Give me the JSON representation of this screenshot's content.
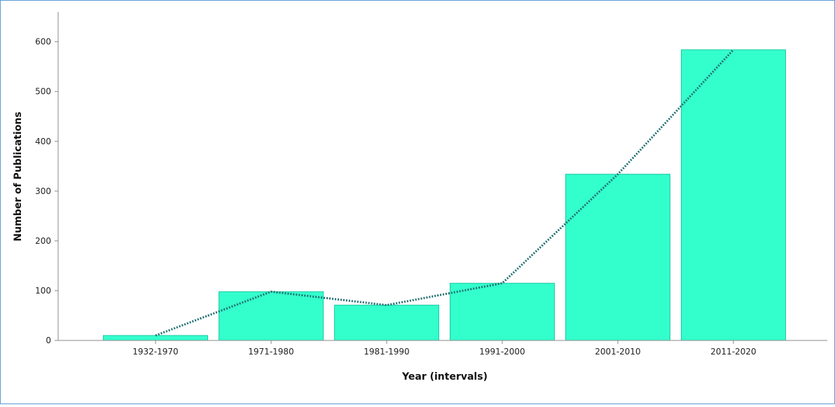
{
  "chart_data": {
    "type": "bar",
    "categories": [
      "1932-1970",
      "1971-1980",
      "1981-1990",
      "1991-2000",
      "2001-2010",
      "2011-2020"
    ],
    "values": [
      10,
      98,
      71,
      115,
      334,
      584
    ],
    "line_overlay": {
      "style": "dotted",
      "values": [
        10,
        98,
        71,
        115,
        334,
        584
      ]
    },
    "title": "",
    "xlabel": "Year (intervals)",
    "ylabel": "Number of Publications",
    "ylim": [
      0,
      660
    ],
    "yticks": [
      0,
      100,
      200,
      300,
      400,
      500,
      600
    ],
    "grid": false,
    "colors": {
      "bar_fill": "#33ffcc",
      "bar_stroke": "#20c9a3",
      "line": "#1f6f70",
      "axis": "#888888",
      "border": "#5b9bd5"
    }
  }
}
